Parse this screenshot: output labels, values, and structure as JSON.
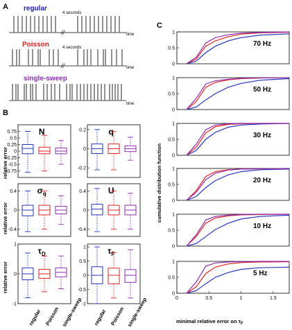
{
  "figure": {
    "panel_labels": [
      "A",
      "B",
      "C"
    ],
    "panel_a": {
      "rows": [
        {
          "name": "regular",
          "color": "#1a1aaa",
          "annotation": "4 seconds",
          "axis_label": "time"
        },
        {
          "name": "Poisson",
          "color": "#dd2222",
          "annotation": "4 seconds",
          "axis_label": "time"
        },
        {
          "name": "single-sweep",
          "color": "#8e2bb0",
          "annotation": "",
          "axis_label": "time"
        }
      ],
      "break_mark": "//"
    },
    "panel_b": {
      "ylabel": "relative error",
      "group_labels": [
        "regular",
        "Poisson",
        "single-sweep"
      ],
      "group_colors": [
        "#2233bb",
        "#dd2222",
        "#8e2bb0"
      ]
    },
    "panel_c": {
      "ylabel": "cumulative distribution function",
      "xlabel": "minimal relative error on τ",
      "xlabel_sub": "F"
    }
  },
  "chart_data": [
    {
      "type": "box",
      "title": "N",
      "ylim": [
        -1,
        1
      ],
      "yticks": [
        "0.75",
        "0.5",
        "0.25",
        "0",
        "-0.25",
        "-0.5",
        "-0.75"
      ],
      "series": [
        {
          "name": "regular",
          "q1": -0.1,
          "median": 0.1,
          "q3": 0.25,
          "whisker_low": -0.8,
          "whisker_high": 0.75
        },
        {
          "name": "Poisson",
          "q1": -0.1,
          "median": 0.0,
          "q3": 0.15,
          "whisker_low": -0.75,
          "whisker_high": 0.6
        },
        {
          "name": "single-sweep",
          "q1": -0.1,
          "median": 0.0,
          "q3": 0.12,
          "whisker_low": -0.5,
          "whisker_high": 0.4
        }
      ]
    },
    {
      "type": "box",
      "title": "q",
      "ylim": [
        -0.3,
        0.25
      ],
      "yticks": [
        "0.2",
        "0",
        "-0.2"
      ],
      "series": [
        {
          "name": "regular",
          "q1": -0.05,
          "median": 0.0,
          "q3": 0.05,
          "whisker_low": -0.22,
          "whisker_high": 0.2
        },
        {
          "name": "Poisson",
          "q1": -0.05,
          "median": 0.0,
          "q3": 0.05,
          "whisker_low": -0.22,
          "whisker_high": 0.18
        },
        {
          "name": "single-sweep",
          "q1": -0.03,
          "median": 0.0,
          "q3": 0.03,
          "whisker_low": -0.12,
          "whisker_high": 0.12
        }
      ]
    },
    {
      "type": "box",
      "title": "σ",
      "title_sub": "q",
      "ylim": [
        -0.55,
        0.55
      ],
      "yticks": [
        "0.4",
        "0",
        "-0.4"
      ],
      "series": [
        {
          "name": "regular",
          "q1": -0.12,
          "median": 0.0,
          "q3": 0.1,
          "whisker_low": -0.45,
          "whisker_high": 0.4
        },
        {
          "name": "Poisson",
          "q1": -0.1,
          "median": 0.0,
          "q3": 0.1,
          "whisker_low": -0.4,
          "whisker_high": 0.4
        },
        {
          "name": "single-sweep",
          "q1": -0.08,
          "median": 0.0,
          "q3": 0.08,
          "whisker_low": -0.3,
          "whisker_high": 0.3
        }
      ]
    },
    {
      "type": "box",
      "title": "U",
      "ylim": [
        -0.55,
        0.55
      ],
      "yticks": [
        "0.4",
        "0",
        "-0.4"
      ],
      "series": [
        {
          "name": "regular",
          "q1": -0.1,
          "median": 0.02,
          "q3": 0.12,
          "whisker_low": -0.45,
          "whisker_high": 0.45
        },
        {
          "name": "Poisson",
          "q1": -0.1,
          "median": 0.0,
          "q3": 0.1,
          "whisker_low": -0.4,
          "whisker_high": 0.4
        },
        {
          "name": "single-sweep",
          "q1": -0.1,
          "median": 0.0,
          "q3": 0.1,
          "whisker_low": -0.4,
          "whisker_high": 0.35
        }
      ]
    },
    {
      "type": "box",
      "title": "τ",
      "title_sub": "D",
      "ylim": [
        -1,
        1
      ],
      "yticks": [
        "1",
        "0",
        "-1"
      ],
      "series": [
        {
          "name": "regular",
          "q1": -0.2,
          "median": 0.0,
          "q3": 0.2,
          "whisker_low": -0.8,
          "whisker_high": 0.7
        },
        {
          "name": "Poisson",
          "q1": -0.15,
          "median": 0.0,
          "q3": 0.15,
          "whisker_low": -0.6,
          "whisker_high": 0.6
        },
        {
          "name": "single-sweep",
          "q1": -0.1,
          "median": 0.05,
          "q3": 0.2,
          "whisker_low": -0.5,
          "whisker_high": 0.6
        }
      ]
    },
    {
      "type": "box",
      "title": "τ",
      "title_sub": "F",
      "ylim": [
        -1,
        1.1
      ],
      "yticks": [
        "1",
        "0.5",
        "0",
        "-0.5",
        "-1"
      ],
      "series": [
        {
          "name": "regular",
          "q1": -0.3,
          "median": 0.0,
          "q3": 0.3,
          "whisker_low": -1.0,
          "whisker_high": 1.0
        },
        {
          "name": "Poisson",
          "q1": -0.3,
          "median": 0.0,
          "q3": 0.25,
          "whisker_low": -0.8,
          "whisker_high": 0.8
        },
        {
          "name": "single-sweep",
          "q1": -0.25,
          "median": 0.0,
          "q3": 0.2,
          "whisker_low": -0.8,
          "whisker_high": 0.9
        }
      ]
    },
    {
      "type": "line",
      "annotation": "70 Hz",
      "xlim": [
        0,
        1.75
      ],
      "ylim": [
        0,
        1
      ],
      "yticks": [
        "0",
        "0.5",
        "1"
      ],
      "series": [
        {
          "name": "regular",
          "x": [
            0.15,
            0.3,
            0.45,
            0.6,
            0.8,
            1.0,
            1.3,
            1.75
          ],
          "y": [
            0,
            0.08,
            0.35,
            0.55,
            0.72,
            0.82,
            0.9,
            0.94
          ]
        },
        {
          "name": "Poisson",
          "x": [
            0.15,
            0.3,
            0.45,
            0.6,
            0.8,
            1.0,
            1.3,
            1.75
          ],
          "y": [
            0,
            0.15,
            0.55,
            0.72,
            0.85,
            0.93,
            0.97,
            0.99
          ]
        },
        {
          "name": "single-sweep",
          "x": [
            0.15,
            0.3,
            0.45,
            0.6,
            0.8,
            1.0,
            1.3,
            1.75
          ],
          "y": [
            0,
            0.2,
            0.65,
            0.82,
            0.91,
            0.96,
            0.98,
            1.0
          ]
        }
      ]
    },
    {
      "type": "line",
      "annotation": "50 Hz",
      "xlim": [
        0,
        1.75
      ],
      "ylim": [
        0,
        1
      ],
      "yticks": [
        "0",
        "0.5",
        "1"
      ],
      "series": [
        {
          "name": "regular",
          "x": [
            0.15,
            0.3,
            0.45,
            0.6,
            0.8,
            1.0,
            1.3,
            1.75
          ],
          "y": [
            0,
            0.08,
            0.3,
            0.5,
            0.7,
            0.82,
            0.92,
            0.97
          ]
        },
        {
          "name": "Poisson",
          "x": [
            0.15,
            0.3,
            0.45,
            0.6,
            0.8,
            1.0,
            1.3,
            1.75
          ],
          "y": [
            0,
            0.25,
            0.7,
            0.85,
            0.93,
            0.97,
            0.99,
            1.0
          ]
        },
        {
          "name": "single-sweep",
          "x": [
            0.15,
            0.3,
            0.45,
            0.6,
            0.8,
            1.0,
            1.3,
            1.75
          ],
          "y": [
            0,
            0.35,
            0.8,
            0.9,
            0.95,
            0.98,
            0.99,
            1.0
          ]
        }
      ]
    },
    {
      "type": "line",
      "annotation": "30 Hz",
      "xlim": [
        0,
        1.75
      ],
      "ylim": [
        0,
        1
      ],
      "yticks": [
        "0",
        "0.5",
        "1"
      ],
      "series": [
        {
          "name": "regular",
          "x": [
            0.15,
            0.3,
            0.45,
            0.6,
            0.8,
            1.0,
            1.3,
            1.75
          ],
          "y": [
            0,
            0.15,
            0.5,
            0.72,
            0.88,
            0.95,
            0.98,
            1.0
          ]
        },
        {
          "name": "Poisson",
          "x": [
            0.15,
            0.3,
            0.45,
            0.6,
            0.8,
            1.0,
            1.3,
            1.75
          ],
          "y": [
            0,
            0.25,
            0.7,
            0.9,
            0.97,
            0.99,
            1.0,
            1.0
          ]
        },
        {
          "name": "single-sweep",
          "x": [
            0.15,
            0.3,
            0.45,
            0.6,
            0.8,
            1.0,
            1.3,
            1.75
          ],
          "y": [
            0,
            0.35,
            0.8,
            0.95,
            0.99,
            1.0,
            1.0,
            1.0
          ]
        }
      ]
    },
    {
      "type": "line",
      "annotation": "20 Hz",
      "xlim": [
        0,
        1.75
      ],
      "ylim": [
        0,
        1
      ],
      "yticks": [
        "0",
        "0.5",
        "1"
      ],
      "series": [
        {
          "name": "regular",
          "x": [
            0.15,
            0.3,
            0.45,
            0.6,
            0.8,
            1.0,
            1.3,
            1.75
          ],
          "y": [
            0,
            0.12,
            0.4,
            0.62,
            0.8,
            0.9,
            0.96,
            0.98
          ]
        },
        {
          "name": "Poisson",
          "x": [
            0.15,
            0.3,
            0.45,
            0.6,
            0.8,
            1.0,
            1.3,
            1.75
          ],
          "y": [
            0,
            0.3,
            0.75,
            0.9,
            0.96,
            0.98,
            0.99,
            1.0
          ]
        },
        {
          "name": "single-sweep",
          "x": [
            0.15,
            0.3,
            0.45,
            0.6,
            0.8,
            1.0,
            1.3,
            1.75
          ],
          "y": [
            0,
            0.25,
            0.65,
            0.85,
            0.95,
            0.98,
            0.99,
            1.0
          ]
        }
      ]
    },
    {
      "type": "line",
      "annotation": "10 Hz",
      "xlim": [
        0,
        1.75
      ],
      "ylim": [
        0,
        1
      ],
      "yticks": [
        "0",
        "0.5",
        "1"
      ],
      "series": [
        {
          "name": "regular",
          "x": [
            0.15,
            0.3,
            0.45,
            0.6,
            0.8,
            1.0,
            1.3,
            1.75
          ],
          "y": [
            0,
            0.08,
            0.3,
            0.52,
            0.72,
            0.85,
            0.93,
            0.97
          ]
        },
        {
          "name": "Poisson",
          "x": [
            0.15,
            0.3,
            0.45,
            0.6,
            0.8,
            1.0,
            1.3,
            1.75
          ],
          "y": [
            0,
            0.3,
            0.72,
            0.88,
            0.95,
            0.98,
            0.99,
            1.0
          ]
        },
        {
          "name": "single-sweep",
          "x": [
            0.15,
            0.3,
            0.45,
            0.6,
            0.8,
            1.0,
            1.3,
            1.75
          ],
          "y": [
            0,
            0.35,
            0.82,
            0.93,
            0.97,
            0.99,
            1.0,
            1.0
          ]
        }
      ]
    },
    {
      "type": "line",
      "annotation": "5 Hz",
      "xlim": [
        0,
        1.75
      ],
      "ylim": [
        0,
        1
      ],
      "yticks": [
        "0",
        "0.5",
        "1"
      ],
      "xticks": [
        "0",
        "0.5",
        "1",
        "1.5"
      ],
      "series": [
        {
          "name": "regular",
          "x": [
            0.15,
            0.3,
            0.45,
            0.6,
            0.8,
            1.0,
            1.3,
            1.75
          ],
          "y": [
            0,
            0.08,
            0.3,
            0.5,
            0.65,
            0.75,
            0.8,
            0.82
          ]
        },
        {
          "name": "Poisson",
          "x": [
            0.15,
            0.3,
            0.45,
            0.6,
            0.8,
            1.0,
            1.3,
            1.75
          ],
          "y": [
            0,
            0.2,
            0.62,
            0.82,
            0.92,
            0.96,
            0.98,
            0.99
          ]
        },
        {
          "name": "single-sweep",
          "x": [
            0.15,
            0.3,
            0.45,
            0.6,
            0.8,
            1.0,
            1.3,
            1.75
          ],
          "y": [
            0,
            0.35,
            0.85,
            0.95,
            0.98,
            0.99,
            1.0,
            1.0
          ]
        }
      ]
    }
  ]
}
